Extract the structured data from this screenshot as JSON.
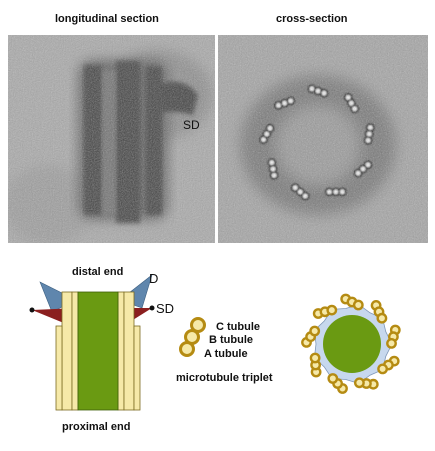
{
  "micrographs": {
    "longitudinal_title": "longitudinal section",
    "cross_title": "cross-section",
    "sd_label": "SD"
  },
  "schematic": {
    "distal_label": "distal end",
    "proximal_label": "proximal end",
    "d_label": "D",
    "sd_label": "SD"
  },
  "triplet": {
    "c_label": "C tubule",
    "b_label": "B tubule",
    "a_label": "A tubule",
    "caption": "microtubule triplet"
  },
  "colors": {
    "core_green": "#6a9a12",
    "wall_yellow": "#f6e9a8",
    "wall_outline": "#7a6a20",
    "blade_blue": "#5f86ad",
    "appendage_red": "#8b1f1f",
    "ring_gold": "#b58b12",
    "halo_blue": "#c7d8ee"
  }
}
